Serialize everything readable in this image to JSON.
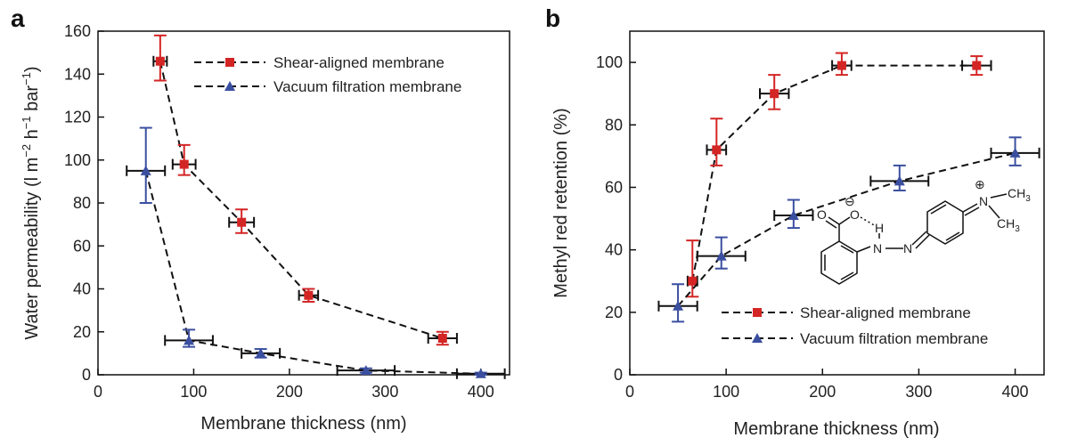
{
  "chart_data": [
    {
      "panel": "a",
      "type": "scatter",
      "xlabel": "Membrane thickness (nm)",
      "ylabel": "Water permeability (l m−2 h−1 bar−1)",
      "ylabel_parts": {
        "pre": "Water permeability (l m",
        "e1": "−2",
        "mid1": " h",
        "e2": "−1",
        "mid2": " bar",
        "e3": "−1",
        "post": ")"
      },
      "xlim": [
        0,
        430
      ],
      "ylim": [
        0,
        160
      ],
      "xticks": [
        0,
        100,
        200,
        300,
        400
      ],
      "yticks": [
        0,
        20,
        40,
        60,
        80,
        100,
        120,
        140,
        160
      ],
      "legend_position": "top-right",
      "series": [
        {
          "name": "Shear-aligned membrane",
          "marker": "square",
          "color": "#d42525",
          "errcolor": "#d42525",
          "points": [
            {
              "x": 65,
              "y": 146,
              "xerr": 7,
              "yerr_lo": 9,
              "yerr_hi": 12
            },
            {
              "x": 90,
              "y": 98,
              "xerr": 12,
              "yerr_lo": 5,
              "yerr_hi": 9
            },
            {
              "x": 150,
              "y": 71,
              "xerr": 13,
              "yerr_lo": 5,
              "yerr_hi": 6
            },
            {
              "x": 220,
              "y": 37,
              "xerr": 10,
              "yerr_lo": 3,
              "yerr_hi": 3
            },
            {
              "x": 360,
              "y": 17,
              "xerr": 15,
              "yerr_lo": 3,
              "yerr_hi": 3
            }
          ]
        },
        {
          "name": "Vacuum filtration membrane",
          "marker": "triangle",
          "color": "#3b4fa0",
          "errcolor": "#3b4fa0",
          "points": [
            {
              "x": 50,
              "y": 95,
              "xerr": 20,
              "yerr_lo": 15,
              "yerr_hi": 20
            },
            {
              "x": 95,
              "y": 16,
              "xerr": 25,
              "yerr_lo": 3,
              "yerr_hi": 5
            },
            {
              "x": 170,
              "y": 10,
              "xerr": 20,
              "yerr_lo": 2,
              "yerr_hi": 2
            },
            {
              "x": 280,
              "y": 2,
              "xerr": 30,
              "yerr_lo": 1,
              "yerr_hi": 1
            },
            {
              "x": 400,
              "y": 0.5,
              "xerr": 25,
              "yerr_lo": 0.5,
              "yerr_hi": 0.5
            }
          ]
        }
      ]
    },
    {
      "panel": "b",
      "type": "scatter",
      "xlabel": "Membrane thickness (nm)",
      "ylabel": "Methyl red retention (%)",
      "xlim": [
        0,
        430
      ],
      "ylim": [
        0,
        110
      ],
      "xticks": [
        0,
        100,
        200,
        300,
        400
      ],
      "yticks": [
        0,
        20,
        40,
        60,
        80,
        100
      ],
      "legend_position": "bottom-right",
      "series": [
        {
          "name": "Shear-aligned membrane",
          "marker": "square",
          "color": "#d42525",
          "errcolor": "#d42525",
          "points": [
            {
              "x": 65,
              "y": 30,
              "xerr": 5,
              "yerr_lo": 5,
              "yerr_hi": 13
            },
            {
              "x": 90,
              "y": 72,
              "xerr": 10,
              "yerr_lo": 5,
              "yerr_hi": 10
            },
            {
              "x": 150,
              "y": 90,
              "xerr": 15,
              "yerr_lo": 5,
              "yerr_hi": 6
            },
            {
              "x": 220,
              "y": 99,
              "xerr": 10,
              "yerr_lo": 3,
              "yerr_hi": 4
            },
            {
              "x": 360,
              "y": 99,
              "xerr": 15,
              "yerr_lo": 3,
              "yerr_hi": 3
            }
          ]
        },
        {
          "name": "Vacuum filtration membrane",
          "marker": "triangle",
          "color": "#3b4fa0",
          "errcolor": "#3b4fa0",
          "points": [
            {
              "x": 50,
              "y": 22,
              "xerr": 20,
              "yerr_lo": 5,
              "yerr_hi": 7
            },
            {
              "x": 95,
              "y": 38,
              "xerr": 25,
              "yerr_lo": 4,
              "yerr_hi": 6
            },
            {
              "x": 170,
              "y": 51,
              "xerr": 20,
              "yerr_lo": 4,
              "yerr_hi": 5
            },
            {
              "x": 280,
              "y": 62,
              "xerr": 30,
              "yerr_lo": 3,
              "yerr_hi": 5
            },
            {
              "x": 400,
              "y": 71,
              "xerr": 25,
              "yerr_lo": 4,
              "yerr_hi": 5
            }
          ]
        }
      ]
    }
  ],
  "panel_labels": {
    "a": "a",
    "b": "b"
  },
  "legend": {
    "shear": "Shear-aligned membrane",
    "vacuum": "Vacuum filtration membrane"
  },
  "molecule": {
    "name": "methyl red",
    "atoms": {
      "O_carbonyl": "O",
      "O_minus": "O",
      "charge_minus": "⊖",
      "H": "H",
      "N_amine": "N",
      "N_azo": "N",
      "N_plus": "N",
      "charge_plus": "⊕",
      "CH3_upper": "CH",
      "CH3_lower": "CH",
      "sub3": "3"
    }
  },
  "colors": {
    "shear": "#d42525",
    "vacuum": "#3b4fa0",
    "line": "#111111"
  }
}
